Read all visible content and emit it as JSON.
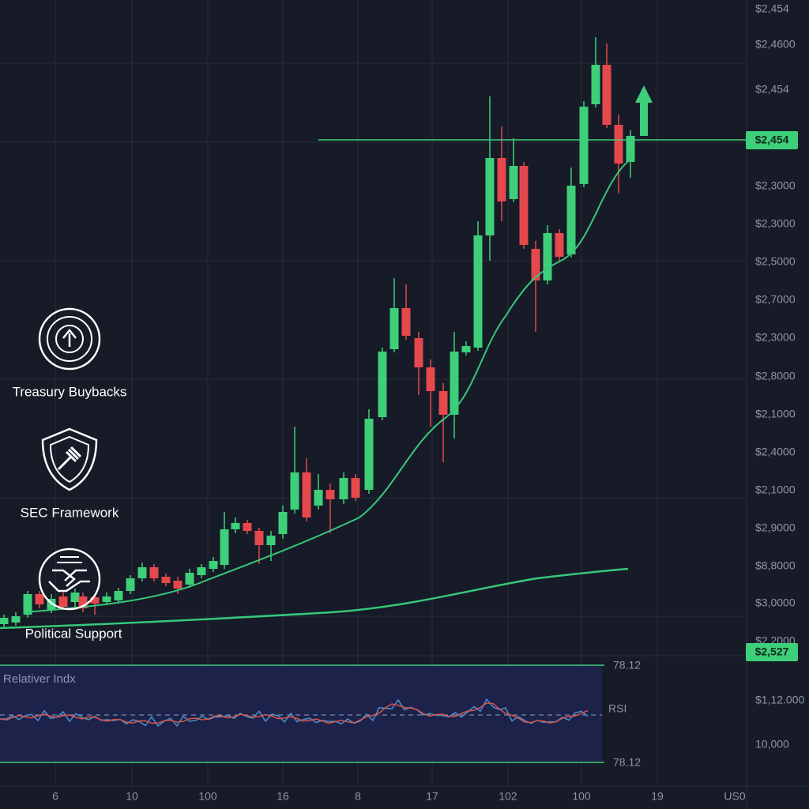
{
  "price_axis": [
    "$2,454",
    "$2,4600",
    "$2,454",
    "$2,3000",
    "$2,3000",
    "$2,5000",
    "$2,7000",
    "$2,3000",
    "$2,8000",
    "$2,1000",
    "$2,4000",
    "$2,1000",
    "$2,9000",
    "$8,8000",
    "$3,0000",
    "$2,2000"
  ],
  "price_tags": [
    "$2,454",
    "$2,527"
  ],
  "lower_axis": [
    "$1,12.000",
    "10,000"
  ],
  "time_axis": [
    "6",
    "10",
    "100",
    "16",
    "8",
    "17",
    "102",
    "100",
    "19",
    "US0"
  ],
  "features": [
    "Treasury Buybacks",
    "SEC Framework",
    "Political Support"
  ],
  "rsi": {
    "title": "Relativer Indx",
    "upper": "78.12",
    "label": "RSI",
    "lower": "78.12"
  }
}
